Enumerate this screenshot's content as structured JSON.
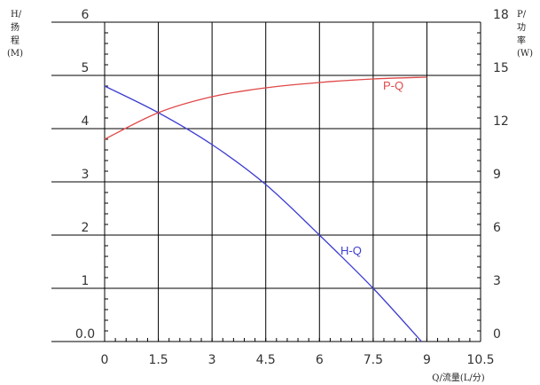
{
  "chart_data": {
    "type": "line",
    "x_axis": {
      "label": "Q/流量(L/分)",
      "ticks": [
        "0",
        "1.5",
        "3",
        "4.5",
        "6",
        "7.5",
        "9",
        "10.5"
      ],
      "range": [
        0,
        10.5
      ]
    },
    "y_axis_left": {
      "label_lines": [
        "H/",
        "扬",
        "程",
        "(M)"
      ],
      "ticks": [
        "0.0",
        "1",
        "2",
        "3",
        "4",
        "5",
        "6"
      ],
      "range": [
        0,
        6
      ]
    },
    "y_axis_right": {
      "label_lines": [
        "P/",
        "功",
        "率",
        "(W)"
      ],
      "ticks": [
        "0",
        "3",
        "6",
        "9",
        "12",
        "15",
        "18"
      ],
      "range": [
        0,
        18
      ]
    },
    "grid": true,
    "series": [
      {
        "name": "H-Q",
        "axis": "left",
        "color": "#3c3cd2",
        "x": [
          0,
          1.5,
          3,
          4.5,
          6,
          7.5,
          8.85
        ],
        "y": [
          4.8,
          4.3,
          3.7,
          2.95,
          2.0,
          1.0,
          0.0
        ]
      },
      {
        "name": "P-Q",
        "axis": "right",
        "color": "#e04848",
        "x": [
          0,
          1.5,
          3,
          4.5,
          6,
          7.5,
          9
        ],
        "y": [
          11.4,
          12.9,
          13.8,
          14.3,
          14.6,
          14.8,
          14.9
        ]
      }
    ]
  }
}
